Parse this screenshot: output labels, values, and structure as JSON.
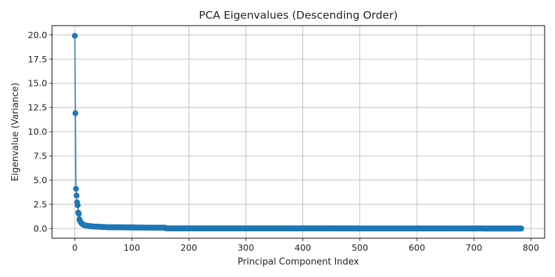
{
  "chart_data": {
    "type": "line",
    "title": "PCA Eigenvalues (Descending Order)",
    "xlabel": "Principal Component Index",
    "ylabel": "Eigenvalue (Variance)",
    "xlim": [
      -40,
      824
    ],
    "ylim": [
      -1.0,
      20.95
    ],
    "xticks": [
      0,
      100,
      200,
      300,
      400,
      500,
      600,
      700,
      800
    ],
    "xtick_labels": [
      "0",
      "100",
      "200",
      "300",
      "400",
      "500",
      "600",
      "700",
      "800"
    ],
    "yticks": [
      0.0,
      2.5,
      5.0,
      7.5,
      10.0,
      12.5,
      15.0,
      17.5,
      20.0
    ],
    "ytick_labels": [
      "0.0",
      "2.5",
      "5.0",
      "7.5",
      "10.0",
      "12.5",
      "15.0",
      "17.5",
      "20.0"
    ],
    "grid": true,
    "marker": "circle",
    "series": [
      {
        "color": "#1f77b4",
        "n_points": 784,
        "x_start": 0,
        "head_values": [
          19.9,
          11.9,
          4.1,
          3.4,
          2.7,
          2.4,
          1.65,
          1.5,
          0.95,
          0.78,
          0.68,
          0.6,
          0.52,
          0.47,
          0.43,
          0.4,
          0.37,
          0.35,
          0.33,
          0.31
        ],
        "segments": [
          {
            "from": 20,
            "to": 30,
            "start": 0.3,
            "end": 0.22
          },
          {
            "from": 30,
            "to": 60,
            "start": 0.22,
            "end": 0.13
          },
          {
            "from": 60,
            "to": 160,
            "start": 0.13,
            "end": 0.08
          },
          {
            "from": 160,
            "to": 783,
            "start": 0.02,
            "end": 0.0
          }
        ]
      }
    ]
  }
}
